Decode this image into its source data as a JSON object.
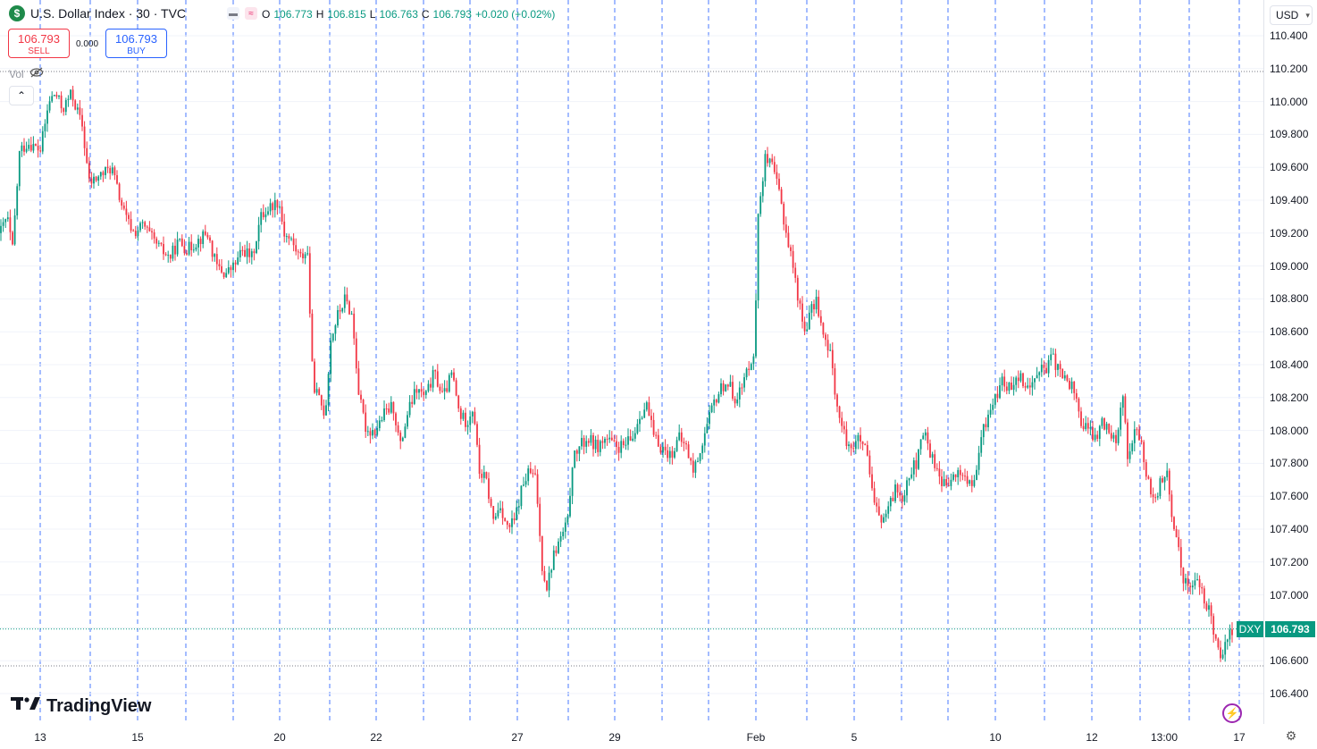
{
  "symbol": {
    "logo_letter": "$",
    "title": "U.S. Dollar Index · 30 · TVC",
    "ohlc": {
      "o_label": "O",
      "o": "106.773",
      "h_label": "H",
      "h": "106.815",
      "l_label": "L",
      "l": "106.763",
      "c_label": "C",
      "c": "106.793",
      "change": "+0.020 (+0.02%)"
    }
  },
  "trade": {
    "sell_price": "106.793",
    "sell_label": "SELL",
    "spread": "0.000",
    "buy_price": "106.793",
    "buy_label": "BUY"
  },
  "volume_label": "Vol",
  "currency": "USD",
  "last_price_tag": {
    "symbol": "DXY",
    "price": "106.793"
  },
  "brand": "TradingView",
  "colors": {
    "up": "#089981",
    "down": "#f23645",
    "grid": "#2962ff",
    "sell": "#f23645",
    "buy": "#2962ff"
  },
  "chart_data": {
    "type": "candlestick",
    "interval": "30",
    "ylim": [
      106.3,
      110.5
    ],
    "y_ticks": [
      "110.400",
      "110.200",
      "110.000",
      "109.800",
      "109.600",
      "109.400",
      "109.200",
      "109.000",
      "108.800",
      "108.600",
      "108.400",
      "108.200",
      "108.000",
      "107.800",
      "107.600",
      "107.400",
      "107.200",
      "107.000",
      "106.800",
      "106.600",
      "106.400"
    ],
    "x_ticks": [
      "13",
      "15",
      "20",
      "22",
      "27",
      "29",
      "Feb",
      "5",
      "10",
      "12",
      "13:00",
      "17"
    ],
    "last_price": 106.793,
    "approx_path": [
      [
        0,
        109.2
      ],
      [
        8,
        109.3
      ],
      [
        14,
        109.1
      ],
      [
        22,
        109.7
      ],
      [
        32,
        109.75
      ],
      [
        45,
        109.7
      ],
      [
        55,
        110.0
      ],
      [
        62,
        110.05
      ],
      [
        70,
        109.95
      ],
      [
        80,
        110.05
      ],
      [
        92,
        109.85
      ],
      [
        100,
        109.5
      ],
      [
        112,
        109.55
      ],
      [
        125,
        109.6
      ],
      [
        132,
        109.45
      ],
      [
        140,
        109.3
      ],
      [
        150,
        109.2
      ],
      [
        160,
        109.25
      ],
      [
        172,
        109.15
      ],
      [
        180,
        109.1
      ],
      [
        190,
        109.05
      ],
      [
        200,
        109.15
      ],
      [
        210,
        109.1
      ],
      [
        220,
        109.15
      ],
      [
        232,
        109.2
      ],
      [
        242,
        109.0
      ],
      [
        252,
        108.95
      ],
      [
        262,
        109.0
      ],
      [
        272,
        109.1
      ],
      [
        282,
        109.05
      ],
      [
        292,
        109.3
      ],
      [
        300,
        109.35
      ],
      [
        312,
        109.4
      ],
      [
        318,
        109.2
      ],
      [
        326,
        109.15
      ],
      [
        336,
        109.05
      ],
      [
        344,
        109.1
      ],
      [
        350,
        108.3
      ],
      [
        356,
        108.2
      ],
      [
        364,
        108.1
      ],
      [
        370,
        108.55
      ],
      [
        378,
        108.7
      ],
      [
        386,
        108.8
      ],
      [
        394,
        108.7
      ],
      [
        402,
        108.2
      ],
      [
        410,
        108.0
      ],
      [
        420,
        108.0
      ],
      [
        430,
        108.1
      ],
      [
        440,
        108.15
      ],
      [
        448,
        107.9
      ],
      [
        456,
        108.1
      ],
      [
        466,
        108.25
      ],
      [
        476,
        108.2
      ],
      [
        486,
        108.35
      ],
      [
        496,
        108.2
      ],
      [
        506,
        108.35
      ],
      [
        514,
        108.1
      ],
      [
        522,
        108.05
      ],
      [
        530,
        108.15
      ],
      [
        536,
        107.75
      ],
      [
        544,
        107.7
      ],
      [
        552,
        107.45
      ],
      [
        560,
        107.55
      ],
      [
        568,
        107.4
      ],
      [
        576,
        107.45
      ],
      [
        584,
        107.65
      ],
      [
        592,
        107.75
      ],
      [
        600,
        107.7
      ],
      [
        606,
        107.2
      ],
      [
        612,
        107.05
      ],
      [
        620,
        107.25
      ],
      [
        628,
        107.35
      ],
      [
        636,
        107.45
      ],
      [
        640,
        107.8
      ],
      [
        648,
        107.9
      ],
      [
        658,
        107.95
      ],
      [
        668,
        107.9
      ],
      [
        678,
        107.95
      ],
      [
        688,
        107.9
      ],
      [
        698,
        107.9
      ],
      [
        708,
        107.95
      ],
      [
        716,
        108.1
      ],
      [
        724,
        108.15
      ],
      [
        732,
        107.95
      ],
      [
        740,
        107.9
      ],
      [
        750,
        107.85
      ],
      [
        760,
        107.95
      ],
      [
        768,
        107.9
      ],
      [
        776,
        107.75
      ],
      [
        782,
        107.85
      ],
      [
        790,
        108.0
      ],
      [
        798,
        108.15
      ],
      [
        806,
        108.25
      ],
      [
        814,
        108.3
      ],
      [
        822,
        108.2
      ],
      [
        830,
        108.25
      ],
      [
        838,
        108.4
      ],
      [
        845,
        108.5
      ],
      [
        848,
        109.3
      ],
      [
        856,
        109.65
      ],
      [
        864,
        109.6
      ],
      [
        872,
        109.45
      ],
      [
        880,
        109.2
      ],
      [
        886,
        109.05
      ],
      [
        892,
        108.85
      ],
      [
        900,
        108.6
      ],
      [
        906,
        108.7
      ],
      [
        914,
        108.8
      ],
      [
        922,
        108.55
      ],
      [
        930,
        108.45
      ],
      [
        938,
        108.1
      ],
      [
        946,
        107.95
      ],
      [
        954,
        107.9
      ],
      [
        962,
        107.95
      ],
      [
        970,
        107.85
      ],
      [
        978,
        107.55
      ],
      [
        986,
        107.45
      ],
      [
        994,
        107.5
      ],
      [
        1002,
        107.65
      ],
      [
        1010,
        107.6
      ],
      [
        1018,
        107.75
      ],
      [
        1026,
        107.8
      ],
      [
        1034,
        108.0
      ],
      [
        1042,
        107.85
      ],
      [
        1050,
        107.75
      ],
      [
        1058,
        107.65
      ],
      [
        1066,
        107.7
      ],
      [
        1074,
        107.75
      ],
      [
        1082,
        107.7
      ],
      [
        1090,
        107.65
      ],
      [
        1098,
        107.95
      ],
      [
        1106,
        108.1
      ],
      [
        1114,
        108.2
      ],
      [
        1122,
        108.3
      ],
      [
        1130,
        108.25
      ],
      [
        1138,
        108.35
      ],
      [
        1146,
        108.3
      ],
      [
        1154,
        108.25
      ],
      [
        1162,
        108.4
      ],
      [
        1170,
        108.35
      ],
      [
        1178,
        108.45
      ],
      [
        1186,
        108.35
      ],
      [
        1194,
        108.3
      ],
      [
        1202,
        108.25
      ],
      [
        1210,
        108.05
      ],
      [
        1218,
        108.0
      ],
      [
        1226,
        107.95
      ],
      [
        1234,
        108.05
      ],
      [
        1242,
        108.0
      ],
      [
        1250,
        107.95
      ],
      [
        1256,
        108.25
      ],
      [
        1262,
        107.85
      ],
      [
        1270,
        108.0
      ],
      [
        1278,
        107.9
      ],
      [
        1286,
        107.65
      ],
      [
        1294,
        107.6
      ],
      [
        1300,
        107.7
      ],
      [
        1306,
        107.75
      ],
      [
        1312,
        107.4
      ],
      [
        1318,
        107.35
      ],
      [
        1324,
        107.1
      ],
      [
        1332,
        107.05
      ],
      [
        1340,
        107.1
      ],
      [
        1348,
        106.95
      ],
      [
        1354,
        106.9
      ],
      [
        1360,
        106.75
      ],
      [
        1366,
        106.65
      ],
      [
        1372,
        106.7
      ],
      [
        1378,
        106.78
      ],
      [
        1382,
        106.79
      ]
    ]
  }
}
